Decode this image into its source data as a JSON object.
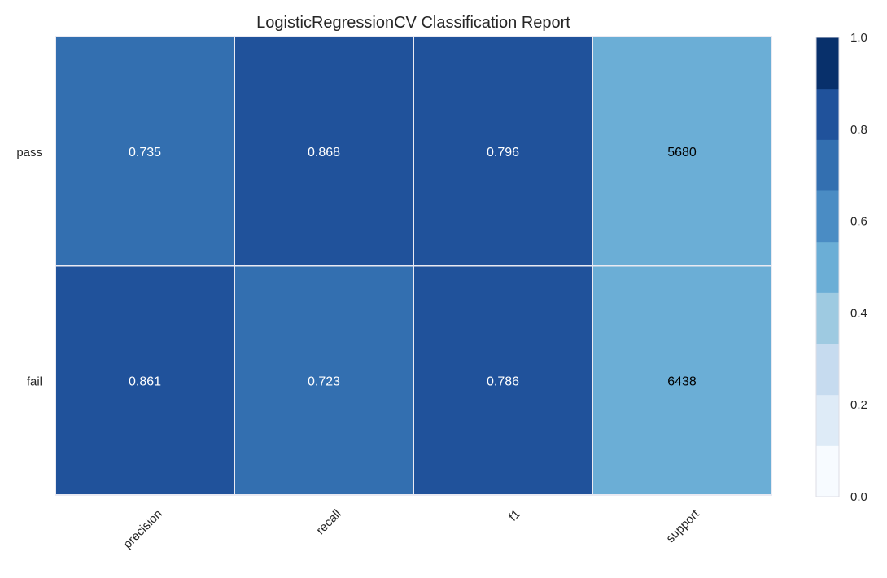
{
  "chart_data": {
    "type": "heatmap",
    "title": "LogisticRegressionCV Classification Report",
    "rows": [
      "pass",
      "fail"
    ],
    "columns": [
      "precision",
      "recall",
      "f1",
      "support"
    ],
    "cells": [
      [
        {
          "label": "0.735",
          "value": 0.735
        },
        {
          "label": "0.868",
          "value": 0.868
        },
        {
          "label": "0.796",
          "value": 0.796
        },
        {
          "label": "5680",
          "value": 0.469
        }
      ],
      [
        {
          "label": "0.861",
          "value": 0.861
        },
        {
          "label": "0.723",
          "value": 0.723
        },
        {
          "label": "0.786",
          "value": 0.786
        },
        {
          "label": "6438",
          "value": 0.531
        }
      ]
    ],
    "colorbar": {
      "range": [
        0.0,
        1.0
      ],
      "ticks": [
        "0.0",
        "0.2",
        "0.4",
        "0.6",
        "0.8",
        "1.0"
      ],
      "colors": [
        "#f7fbff",
        "#deebf7",
        "#c6dbef",
        "#9ecae1",
        "#6baed6",
        "#4a8cc4",
        "#336fb0",
        "#20529b",
        "#08306b"
      ]
    },
    "text_colors": {
      "dark_cell": "#ffffff",
      "light_cell": "#000000"
    }
  }
}
